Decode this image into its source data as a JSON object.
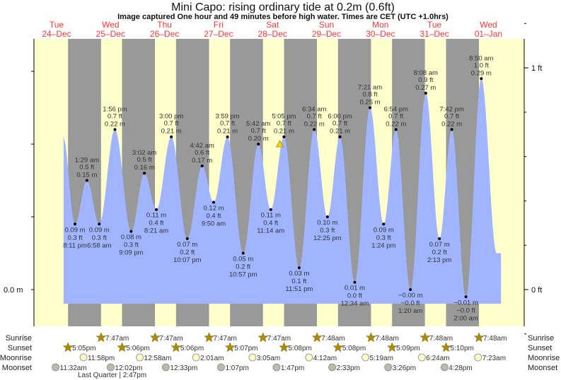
{
  "header": {
    "title": "Mini Capo: rising  ordinary tide at 0.2m (0.6ft)",
    "subtitle": "Image captured One hour and 49 minutes before high water. Times are CET (UTC +1.0hrs)"
  },
  "colors": {
    "day": "#ffffcc",
    "night": "#999999",
    "water": "#a0b4ff",
    "day_label": "#ff3333",
    "sun": "#b08a00",
    "moonrise": "#ffffcc",
    "moonset": "#bbbbaa",
    "now_marker": "#f5d800"
  },
  "chart_data": {
    "type": "area",
    "title": "Mini Capo: rising  ordinary tide at 0.2m (0.6ft)",
    "days": [
      {
        "dow": "Tue",
        "date": "24–Dec"
      },
      {
        "dow": "Wed",
        "date": "25–Dec"
      },
      {
        "dow": "Thu",
        "date": "26–Dec"
      },
      {
        "dow": "Fri",
        "date": "27–Dec"
      },
      {
        "dow": "Sat",
        "date": "28–Dec"
      },
      {
        "dow": "Sun",
        "date": "29–Dec"
      },
      {
        "dow": "Mon",
        "date": "30–Dec"
      },
      {
        "dow": "Tue",
        "date": "31–Dec"
      },
      {
        "dow": "Wed",
        "date": "01–Jan"
      }
    ],
    "left_axis": {
      "label": "0.0 m",
      "unit": "m",
      "ylim": [
        -0.02,
        0.34
      ]
    },
    "right_axis": {
      "labels": [
        {
          "text": "1 ft",
          "ft": 1
        },
        {
          "text": "0 ft",
          "ft": 0
        }
      ]
    },
    "extremes": [
      {
        "day": 0,
        "type": "low",
        "time": "8:11 pm",
        "m": "0.09 m",
        "ft": "0.3 ft",
        "value": 0.09
      },
      {
        "day": 1,
        "type": "high",
        "time": "1:29 am",
        "m": "0.15 m",
        "ft": "0.5 ft",
        "value": 0.15
      },
      {
        "day": 1,
        "type": "low",
        "time": "6:58 am",
        "m": "0.09 m",
        "ft": "0.3 ft",
        "value": 0.09
      },
      {
        "day": 1,
        "type": "high",
        "time": "1:56 pm",
        "m": "0.22 m",
        "ft": "0.7 ft",
        "value": 0.22
      },
      {
        "day": 1,
        "type": "low",
        "time": "9:09 pm",
        "m": "0.08 m",
        "ft": "0.3 ft",
        "value": 0.08
      },
      {
        "day": 2,
        "type": "high",
        "time": "3:02 am",
        "m": "0.16 m",
        "ft": "0.5 ft",
        "value": 0.16
      },
      {
        "day": 2,
        "type": "low",
        "time": "8:21 am",
        "m": "0.11 m",
        "ft": "0.4 ft",
        "value": 0.11
      },
      {
        "day": 2,
        "type": "high",
        "time": "3:00 pm",
        "m": "0.21 m",
        "ft": "0.7 ft",
        "value": 0.21
      },
      {
        "day": 2,
        "type": "low",
        "time": "10:07 pm",
        "m": "0.07 m",
        "ft": "0.2 ft",
        "value": 0.07
      },
      {
        "day": 3,
        "type": "high",
        "time": "4:42 am",
        "m": "0.17 m",
        "ft": "0.6 ft",
        "value": 0.17
      },
      {
        "day": 3,
        "type": "low",
        "time": "9:50 am",
        "m": "0.12 m",
        "ft": "0.4 ft",
        "value": 0.12
      },
      {
        "day": 3,
        "type": "high",
        "time": "3:59 pm",
        "m": "0.21 m",
        "ft": "0.7 ft",
        "value": 0.21
      },
      {
        "day": 3,
        "type": "low",
        "time": "10:57 pm",
        "m": "0.05 m",
        "ft": "0.2 ft",
        "value": 0.05
      },
      {
        "day": 4,
        "type": "high",
        "time": "5:42 am",
        "m": "0.20 m",
        "ft": "0.7 ft",
        "value": 0.2
      },
      {
        "day": 4,
        "type": "low",
        "time": "11:14 am",
        "m": "0.11 m",
        "ft": "0.4 ft",
        "value": 0.11
      },
      {
        "day": 4,
        "type": "high",
        "time": "5:05 pm",
        "m": "0.21 m",
        "ft": "0.7 ft",
        "value": 0.21
      },
      {
        "day": 4,
        "type": "low",
        "time": "11:51 pm",
        "m": "0.03 m",
        "ft": "0.1 ft",
        "value": 0.03
      },
      {
        "day": 5,
        "type": "high",
        "time": "6:34 am",
        "m": "0.22 m",
        "ft": "0.7 ft",
        "value": 0.22
      },
      {
        "day": 5,
        "type": "low",
        "time": "12:25 pm",
        "m": "0.10 m",
        "ft": "0.3 ft",
        "value": 0.1
      },
      {
        "day": 5,
        "type": "high",
        "time": "6:00 pm",
        "m": "0.21 m",
        "ft": "0.7 ft",
        "value": 0.21
      },
      {
        "day": 6,
        "type": "low",
        "time": "12:34 am",
        "m": "0.01 m",
        "ft": "0.0 ft",
        "value": 0.01
      },
      {
        "day": 6,
        "type": "high",
        "time": "7:21 am",
        "m": "0.25 m",
        "ft": "0.8 ft",
        "value": 0.25
      },
      {
        "day": 6,
        "type": "low",
        "time": "1:24 pm",
        "m": "0.09 m",
        "ft": "0.3 ft",
        "value": 0.09
      },
      {
        "day": 6,
        "type": "high",
        "time": "6:54 pm",
        "m": "0.22 m",
        "ft": "0.7 ft",
        "value": 0.22
      },
      {
        "day": 7,
        "type": "low",
        "time": "1:20 am",
        "m": "−0.00 m",
        "ft": "−0.0 ft",
        "value": -0.0
      },
      {
        "day": 7,
        "type": "high",
        "time": "8:08 am",
        "m": "0.27 m",
        "ft": "0.9 ft",
        "value": 0.27
      },
      {
        "day": 7,
        "type": "low",
        "time": "2:13 pm",
        "m": "0.07 m",
        "ft": "0.2 ft",
        "value": 0.07
      },
      {
        "day": 7,
        "type": "high",
        "time": "7:42 pm",
        "m": "0.22 m",
        "ft": "0.7 ft",
        "value": 0.22
      },
      {
        "day": 8,
        "type": "low",
        "time": "2:00 am",
        "m": "−0.01 m",
        "ft": "−0.0 ft",
        "value": -0.01
      },
      {
        "day": 8,
        "type": "high",
        "time": "8:50 am",
        "m": "0.29 m",
        "ft": "1.0 ft",
        "value": 0.29
      }
    ],
    "now_marker": {
      "day": 4,
      "time": "3:16 pm",
      "value": 0.2
    }
  },
  "almanac": {
    "row_labels": {
      "sunrise": "Sunrise",
      "sunset": "Sunset",
      "moonrise": "Moonrise",
      "moonset": "Moonset"
    },
    "sunrise": [
      {
        "day": 1,
        "time": "7:47am"
      },
      {
        "day": 2,
        "time": "7:47am"
      },
      {
        "day": 3,
        "time": "7:47am"
      },
      {
        "day": 4,
        "time": "7:47am"
      },
      {
        "day": 5,
        "time": "7:48am"
      },
      {
        "day": 6,
        "time": "7:48am"
      },
      {
        "day": 7,
        "time": "7:48am"
      },
      {
        "day": 8,
        "time": "7:48am"
      }
    ],
    "sunset": [
      {
        "day": 0,
        "time": "5:05pm"
      },
      {
        "day": 1,
        "time": "5:06pm"
      },
      {
        "day": 2,
        "time": "5:06pm"
      },
      {
        "day": 3,
        "time": "5:07pm"
      },
      {
        "day": 4,
        "time": "5:08pm"
      },
      {
        "day": 5,
        "time": "5:08pm"
      },
      {
        "day": 6,
        "time": "5:09pm"
      },
      {
        "day": 7,
        "time": "5:10pm"
      }
    ],
    "moonrise": [
      {
        "day": 0,
        "time": "11:58pm"
      },
      {
        "day": 2,
        "time": "12:58am"
      },
      {
        "day": 3,
        "time": "2:01am"
      },
      {
        "day": 4,
        "time": "3:05am"
      },
      {
        "day": 5,
        "time": "4:12am"
      },
      {
        "day": 6,
        "time": "5:19am"
      },
      {
        "day": 7,
        "time": "6:24am"
      },
      {
        "day": 8,
        "time": "7:23am"
      }
    ],
    "moonset": [
      {
        "day": 0,
        "time": "11:32am"
      },
      {
        "day": 1,
        "time": "12:02pm"
      },
      {
        "day": 2,
        "time": "12:33pm"
      },
      {
        "day": 3,
        "time": "1:07pm"
      },
      {
        "day": 4,
        "time": "1:47pm"
      },
      {
        "day": 5,
        "time": "2:33pm"
      },
      {
        "day": 6,
        "time": "3:26pm"
      },
      {
        "day": 7,
        "time": "4:28pm"
      }
    ],
    "moon_phase": "Last Quarter | 2:47pm"
  }
}
